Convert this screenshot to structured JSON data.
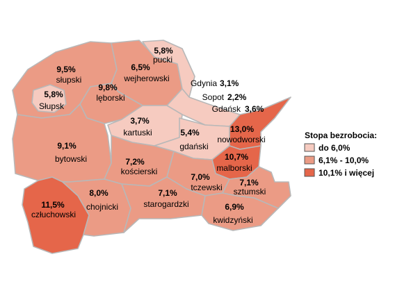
{
  "colors": {
    "low": "#f6cbc0",
    "mid": "#eb9b85",
    "high": "#e5664a",
    "border": "#b8b8b8"
  },
  "legend": {
    "title": "Stopa bezrobocia:",
    "items": [
      {
        "label": "do 6,0%",
        "class": "low"
      },
      {
        "label": "6,1% - 10,0%",
        "class": "mid"
      },
      {
        "label": "10,1% i więcej",
        "class": "high"
      }
    ]
  },
  "regions": {
    "slupski": {
      "pct": "9,5%",
      "name": "słupski",
      "class": "mid"
    },
    "slupsk": {
      "pct": "5,8%",
      "name": "Słupsk",
      "class": "low"
    },
    "wejherowski": {
      "pct": "6,5%",
      "name": "wejherowski",
      "class": "mid"
    },
    "pucki": {
      "pct": "5,8%",
      "name": "pucki",
      "class": "low"
    },
    "leborski": {
      "pct": "9,8%",
      "name": "lęborski",
      "class": "mid"
    },
    "kartuski": {
      "pct": "3,7%",
      "name": "kartuski",
      "class": "low"
    },
    "gdanski": {
      "pct": "5,4%",
      "name": "gdański",
      "class": "low"
    },
    "nowodworski": {
      "pct": "13,0%",
      "name": "nowodworski",
      "class": "high"
    },
    "bytowski": {
      "pct": "9,1%",
      "name": "bytowski",
      "class": "mid"
    },
    "koscierski": {
      "pct": "7,2%",
      "name": "kościerski",
      "class": "mid"
    },
    "malborski": {
      "pct": "10,7%",
      "name": "malborski",
      "class": "high"
    },
    "tczewski": {
      "pct": "7,0%",
      "name": "tczewski",
      "class": "mid"
    },
    "sztumski": {
      "pct": "7,1%",
      "name": "sztumski",
      "class": "mid"
    },
    "czluchowski": {
      "pct": "11,5%",
      "name": "człuchowski",
      "class": "high"
    },
    "chojnicki": {
      "pct": "8,0%",
      "name": "chojnicki",
      "class": "mid"
    },
    "starogardzki": {
      "pct": "7,1%",
      "name": "starogardzki",
      "class": "mid"
    },
    "kwidzynski": {
      "pct": "6,9%",
      "name": "kwidzyński",
      "class": "mid"
    }
  },
  "cities": {
    "gdynia": {
      "name": "Gdynia",
      "pct": "3,1%"
    },
    "sopot": {
      "name": "Sopot",
      "pct": "2,2%"
    },
    "gdansk": {
      "name": "Gdańsk",
      "pct": "3,6%"
    }
  }
}
